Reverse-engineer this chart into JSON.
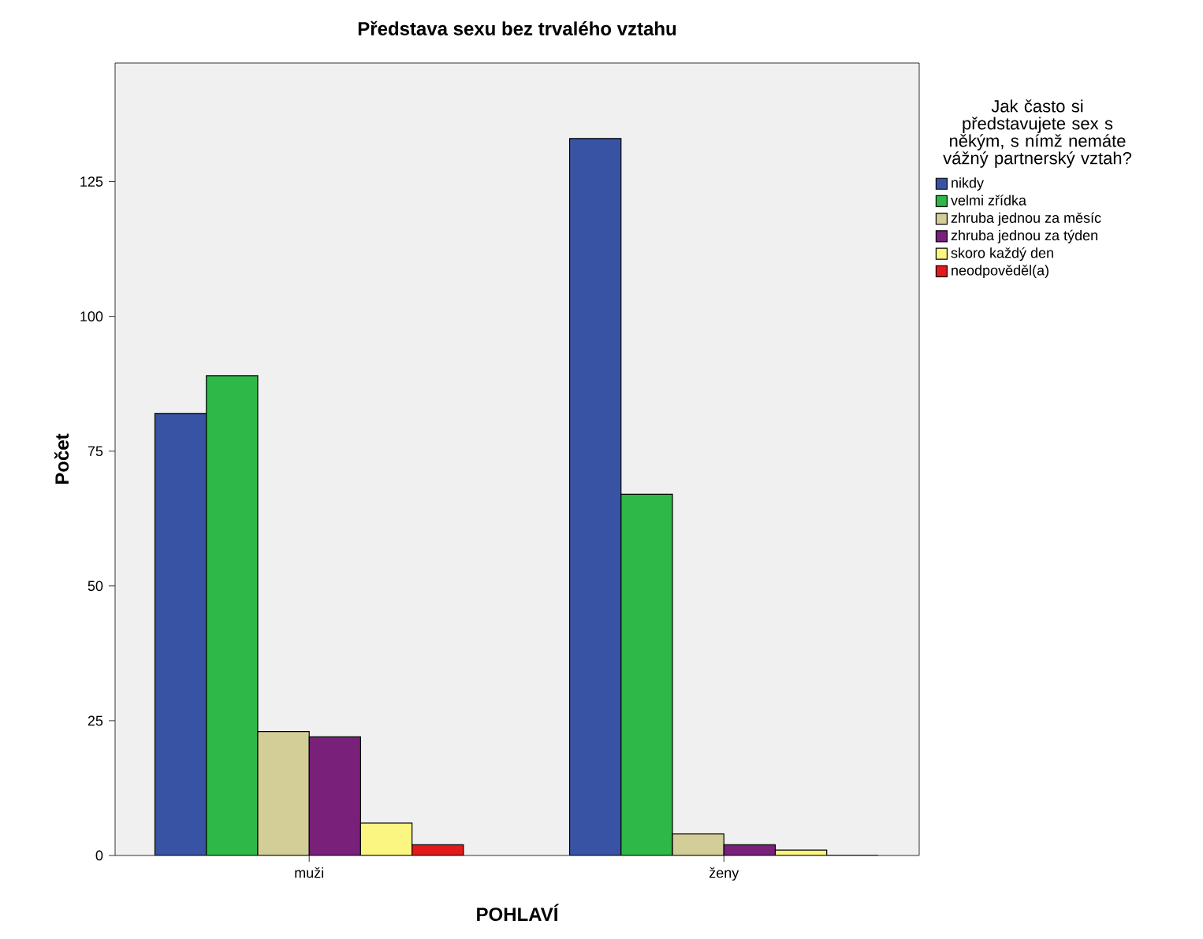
{
  "chart_data": {
    "type": "bar",
    "title": "Představa sexu bez trvalého vztahu",
    "xlabel": "POHLAVÍ",
    "ylabel": "Počet",
    "legend_title": "Jak často si představujete sex s někým, s nímž nemáte vážný partnerský vztah?",
    "categories": [
      "muži",
      "ženy"
    ],
    "series": [
      {
        "name": "nikdy",
        "color": "#3953a4",
        "values": [
          82,
          133
        ]
      },
      {
        "name": "velmi zřídka",
        "color": "#2eb848",
        "values": [
          89,
          67
        ]
      },
      {
        "name": "zhruba jednou za měsíc",
        "color": "#d3ce97",
        "values": [
          23,
          4
        ]
      },
      {
        "name": "zhruba jednou za týden",
        "color": "#79207a",
        "values": [
          22,
          2
        ]
      },
      {
        "name": "skoro každý den",
        "color": "#fbf582",
        "values": [
          6,
          1
        ]
      },
      {
        "name": "neodpověděl(a)",
        "color": "#e31a1c",
        "values": [
          2,
          0
        ]
      }
    ],
    "ylim": [
      0,
      147
    ],
    "yticks": [
      0,
      25,
      50,
      75,
      100,
      125
    ],
    "grid": false,
    "legend": "right"
  }
}
